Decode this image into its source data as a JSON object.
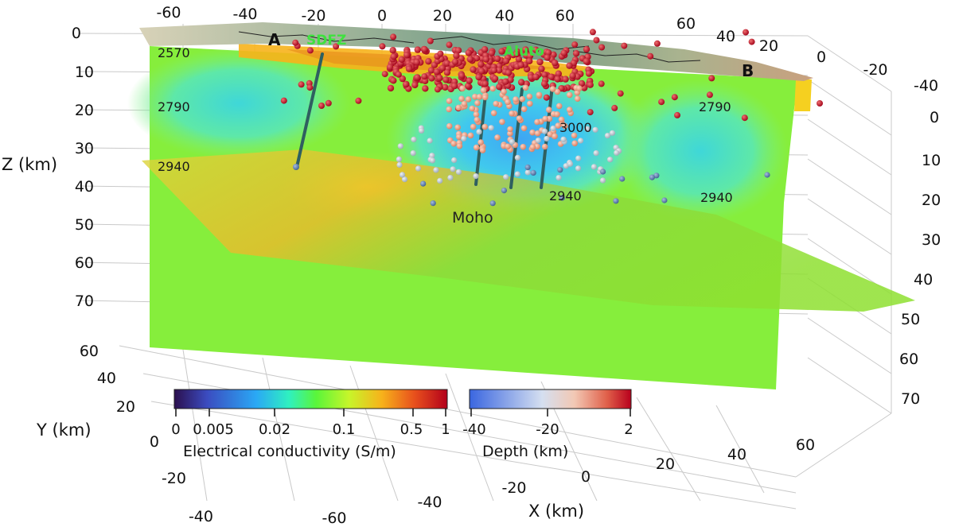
{
  "axes": {
    "z_label": "Z (km)",
    "y_label": "Y (km)",
    "x_label": "X (km)",
    "z_ticks_left": [
      "0",
      "10",
      "20",
      "30",
      "40",
      "50",
      "60",
      "70"
    ],
    "y_ticks_left": [
      "60",
      "40",
      "20",
      "0",
      "-20",
      "-40"
    ],
    "x_ticks_top": [
      "-60",
      "-40",
      "-20",
      "0",
      "20",
      "40",
      "60"
    ],
    "y_ticks_top_right": [
      "60",
      "40",
      "20",
      "0",
      "-20"
    ],
    "x_ticks_bottom": [
      "-60",
      "-40",
      "-20",
      "0",
      "20",
      "40",
      "60"
    ],
    "z_ticks_right": [
      "-40",
      "0",
      "10",
      "20",
      "30",
      "40",
      "50",
      "60",
      "70"
    ]
  },
  "features": {
    "profile_start": "A",
    "profile_end": "B",
    "fault_zone": "SDFZ",
    "volcano": "Aluto",
    "moho": "Moho"
  },
  "contour_labels": [
    "2570",
    "2790",
    "2940",
    "2790",
    "3000",
    "2940",
    "2940"
  ],
  "colorbars": {
    "conductivity": {
      "title": "Electrical conductivity (S/m)",
      "ticks": [
        "0",
        "0.005",
        "0.02",
        "0.1",
        "0.5",
        "1"
      ],
      "scale": "log",
      "colors": [
        "#2b0f4e",
        "#3b4cc0",
        "#2aa8f5",
        "#2ff0c0",
        "#5af53a",
        "#c7f52a",
        "#f7b21b",
        "#e8501c",
        "#b3001b"
      ]
    },
    "depth": {
      "title": "Depth  (km)",
      "ticks": [
        "-40",
        "-20",
        "2"
      ],
      "colors": [
        "#3a66e0",
        "#d5dff0",
        "#f2c8b4",
        "#e0604a",
        "#b8001c"
      ]
    }
  }
}
